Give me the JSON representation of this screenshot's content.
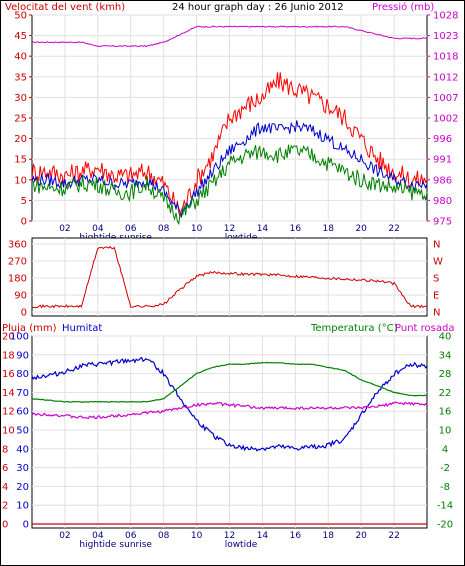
{
  "chart_data": [
    {
      "type": "line",
      "title": "24 hour graph day : 26 Junio 2012",
      "left_axis_label": "Velocitat del vent (kmh)",
      "right_axis_label": "Pressió (mb)",
      "left_ticks": [
        "0",
        "5",
        "10",
        "15",
        "20",
        "25",
        "30",
        "35",
        "40",
        "45",
        "50"
      ],
      "right_ticks": [
        "975",
        "980",
        "986",
        "991",
        "996",
        "1002",
        "1007",
        "1012",
        "1018",
        "1023",
        "1028"
      ],
      "x_ticks": [
        "02",
        "04",
        "06",
        "08",
        "10",
        "12",
        "14",
        "16",
        "18",
        "20",
        "22"
      ],
      "x_ticks_extra": [
        "hightide",
        "sunrise",
        "lowtide"
      ],
      "ylim_left": [
        0,
        50
      ],
      "ylim_right": [
        975,
        1028
      ],
      "x": [
        0,
        1,
        2,
        3,
        4,
        5,
        6,
        7,
        8,
        9,
        10,
        11,
        12,
        13,
        14,
        15,
        16,
        17,
        18,
        19,
        20,
        21,
        22,
        23,
        24
      ],
      "series": [
        {
          "color": "#cc00cc",
          "axis": "right",
          "values": [
            1021,
            1021,
            1021,
            1021,
            1020,
            1020,
            1020,
            1020,
            1021,
            1023,
            1025,
            1025,
            1025,
            1025,
            1025,
            1025,
            1025,
            1025,
            1025,
            1025,
            1024,
            1023,
            1022,
            1022,
            1022
          ]
        },
        {
          "color": "#ff0000",
          "axis": "left",
          "values": [
            12,
            12,
            11,
            12,
            13,
            11,
            11,
            12,
            9,
            2,
            10,
            16,
            25,
            28,
            30,
            34,
            32,
            30,
            28,
            25,
            20,
            15,
            12,
            10,
            10
          ]
        },
        {
          "color": "#0000cc",
          "axis": "left",
          "values": [
            10,
            10,
            9,
            10,
            10,
            9,
            9,
            10,
            7,
            2,
            7,
            12,
            17,
            20,
            23,
            22,
            23,
            22,
            20,
            17,
            15,
            12,
            10,
            9,
            9
          ]
        },
        {
          "color": "#008000",
          "axis": "left",
          "values": [
            9,
            8,
            8,
            9,
            9,
            7,
            7,
            9,
            5,
            1,
            5,
            9,
            14,
            16,
            17,
            16,
            17,
            16,
            14,
            12,
            10,
            9,
            8,
            7,
            7
          ]
        }
      ]
    },
    {
      "type": "line",
      "left_ticks": [
        "0",
        "90",
        "180",
        "270",
        "360"
      ],
      "right_ticks": [
        "N",
        "E",
        "S",
        "W",
        "N"
      ],
      "ylim": [
        0,
        360
      ],
      "x": [
        0,
        1,
        2,
        3,
        4,
        5,
        6,
        7,
        8,
        9,
        10,
        11,
        12,
        13,
        14,
        15,
        16,
        17,
        18,
        19,
        20,
        21,
        22,
        23,
        24
      ],
      "series": [
        {
          "color": "#cc0000",
          "values": [
            30,
            30,
            30,
            30,
            340,
            340,
            30,
            30,
            40,
            120,
            190,
            210,
            205,
            200,
            200,
            195,
            190,
            185,
            180,
            175,
            170,
            165,
            150,
            30,
            30
          ]
        }
      ]
    },
    {
      "type": "line",
      "left_label_1": "Pluja (mm)",
      "left_label_2": "Humitat",
      "right_label_1": "Temperatura (°C)",
      "right_label_2": "Punt rosada",
      "rain_ticks": [
        "0",
        "2",
        "4",
        "6",
        "8",
        "10",
        "12",
        "14",
        "16",
        "18",
        "20"
      ],
      "hum_ticks": [
        "0",
        "10",
        "20",
        "30",
        "40",
        "50",
        "60",
        "70",
        "80",
        "90",
        "100"
      ],
      "temp_ticks": [
        "-20",
        "-14",
        "-8",
        "-2",
        "4",
        "10",
        "16",
        "22",
        "28",
        "34",
        "40"
      ],
      "x_ticks": [
        "02",
        "04",
        "06",
        "08",
        "10",
        "12",
        "14",
        "16",
        "18",
        "20",
        "22"
      ],
      "x_ticks_extra": [
        "hightide",
        "sunrise",
        "lowtide"
      ],
      "ylim_rain": [
        0,
        20
      ],
      "ylim_hum": [
        0,
        100
      ],
      "ylim_temp": [
        -20,
        40
      ],
      "x": [
        0,
        1,
        2,
        3,
        4,
        5,
        6,
        7,
        8,
        9,
        10,
        11,
        12,
        13,
        14,
        15,
        16,
        17,
        18,
        19,
        20,
        21,
        22,
        23,
        24
      ],
      "series": [
        {
          "color": "#0000cc",
          "axis": "hum",
          "values": [
            78,
            79,
            81,
            84,
            85,
            86,
            87,
            88,
            80,
            67,
            55,
            47,
            42,
            40,
            40,
            41,
            40,
            41,
            42,
            45,
            58,
            70,
            80,
            85,
            84
          ]
        },
        {
          "color": "#008000",
          "axis": "temp",
          "values": [
            20,
            19.5,
            19,
            19,
            19,
            19,
            19,
            19,
            20,
            24,
            28,
            30,
            31,
            31,
            31.5,
            31.5,
            31,
            31,
            30,
            29,
            26,
            24,
            22,
            21,
            21
          ]
        },
        {
          "color": "#cc00cc",
          "axis": "temp",
          "values": [
            15,
            15,
            14.5,
            14,
            14,
            14.5,
            15,
            15.5,
            16,
            17,
            18,
            18.5,
            18,
            17.5,
            17,
            17,
            17,
            17,
            17,
            17,
            17,
            17.5,
            18.5,
            18.5,
            18
          ]
        },
        {
          "color": "#cc0000",
          "axis": "rain",
          "values": [
            0,
            0,
            0,
            0,
            0,
            0,
            0,
            0,
            0,
            0,
            0,
            0,
            0,
            0,
            0,
            0,
            0,
            0,
            0,
            0,
            0,
            0,
            0,
            0,
            0
          ]
        }
      ]
    }
  ]
}
